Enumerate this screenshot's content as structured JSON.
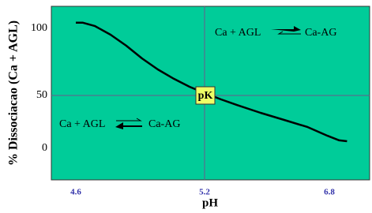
{
  "chart_data": {
    "type": "line",
    "y_label": "% Dissociacao (Ca + AGL)",
    "x_label": "pH",
    "xlim": [
      4.49,
      7.32
    ],
    "xticks": [
      4.6,
      5.2,
      6.8
    ],
    "ylim": [
      -30,
      116
    ],
    "yticks": [
      100,
      50,
      0
    ],
    "reference_lines": {
      "x": 5.2,
      "y": 50
    },
    "background": "#00cc99",
    "series": [
      {
        "color": "#000000",
        "x": [
          4.6,
          4.633,
          4.688,
          4.762,
          4.835,
          4.909,
          4.982,
          5.057,
          5.13,
          5.2,
          5.412,
          5.614,
          5.917,
          6.22,
          6.523,
          6.776,
          6.927,
          7.028
        ],
        "values": [
          104.1,
          104.1,
          101.8,
          95.3,
          87.1,
          77.6,
          69.4,
          62.4,
          56.5,
          51.8,
          46.3,
          41.0,
          33.6,
          26.9,
          20.1,
          11.9,
          7.5,
          6.7
        ]
      }
    ],
    "annotations": {
      "pk": "pK",
      "top_left": "Ca + AGL",
      "top_right": "Ca-AG",
      "bottom_left": "Ca + AGL",
      "bottom_right": "Ca-AG"
    }
  }
}
